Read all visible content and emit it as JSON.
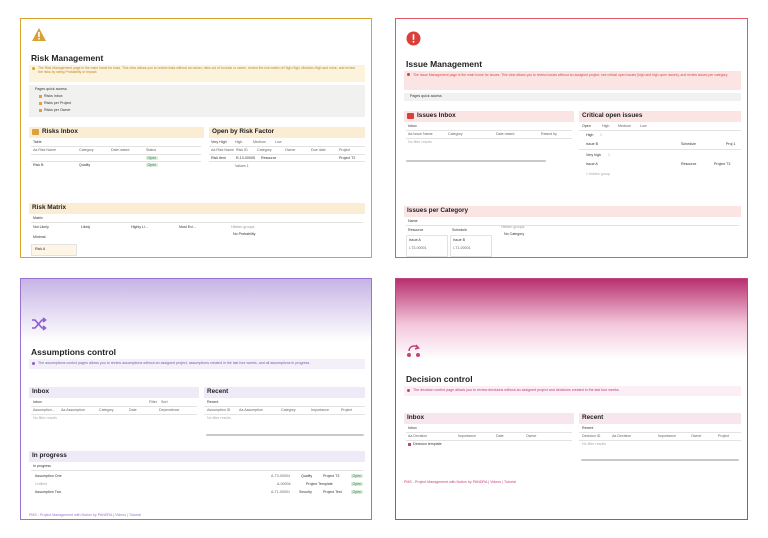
{
  "panels": [
    {
      "title": "Risk Management",
      "description": "The Risk Management page is the main home for risks. This view allows you to review risks without an owner, risks out of bounds or owner, review the risk matrix of High-High, Medium-High and more, and review the risks by rating Probability or Impact.",
      "quick_access": {
        "label": "Pages quick access",
        "items": [
          "Risks Inbox",
          "Risks per Project",
          "Risks per Owner"
        ]
      },
      "inbox": {
        "heading": "Risks Inbox",
        "view": "Table",
        "columns": [
          "Aa Risk Name",
          "Category",
          "Date raised",
          "Status"
        ],
        "rows": [
          [
            "Open"
          ],
          [
            "Risk B",
            "Quality",
            "Open"
          ]
        ]
      },
      "by_factor": {
        "heading": "Open by Risk Factor",
        "tabs": [
          "Very High",
          "High",
          "Medium",
          "Low"
        ],
        "columns": [
          "Aa Risk Name",
          "Risk ID",
          "Category",
          "Owner",
          "Due date",
          "Project"
        ],
        "row": [
          "Risk Item",
          "R-13-00005",
          "Resource",
          "Project T2"
        ],
        "footer": "Values 1"
      },
      "matrix": {
        "heading": "Risk Matrix",
        "view": "Matrix",
        "columns": [
          "Not Likely",
          "Likely",
          "Highly Li...",
          "Most Exi..."
        ],
        "hidden": "Hidden groups",
        "hidden_item": "No Probability",
        "group": "Minimal",
        "card": "Risk A"
      }
    },
    {
      "title": "Issue Management",
      "description": "The Issue Management page is the main home for issues. This view allows you to review issues without an assigned project, see critical open issues (high and high open issues), and review issues per category.",
      "quick_access": {
        "label": "Pages quick access"
      },
      "inbox": {
        "heading": "Issues Inbox",
        "view": "Inbox",
        "columns": [
          "Aa Issue Name",
          "Category",
          "Date raised",
          "Raised by"
        ],
        "empty": "No filter results"
      },
      "critical": {
        "heading": "Critical open issues",
        "tabs": [
          "Open",
          "High",
          "Medium",
          "Low"
        ],
        "groups": [
          {
            "name": "High",
            "count": 1,
            "item": [
              "Issue B",
              "Schedule",
              "Proj 1"
            ]
          },
          {
            "name": "Very high",
            "count": 1,
            "item": [
              "Issue A",
              "Resource",
              "Project T3"
            ]
          }
        ],
        "hidden": "1 hidden group"
      },
      "per_category": {
        "heading": "Issues per Category",
        "view": "Name",
        "groups": [
          {
            "name": "Resource",
            "card": [
              "Issue A",
              "I-T3-00001"
            ]
          },
          {
            "name": "Schedule",
            "card": [
              "Issue B",
              "I-T1-00001"
            ]
          }
        ],
        "hidden": "Hidden groups",
        "hidden_item": "No Category"
      }
    },
    {
      "title": "Assumptions control",
      "description": "The assumptions control pages allows you to review assumptions without an assigned project, assumptions created in the last four weeks, and all assumptions in progress.",
      "inbox": {
        "heading": "Inbox",
        "view": "Inbox",
        "tools": [
          "Filter",
          "Sort"
        ],
        "columns": [
          "Assumption...",
          "Aa Assumption",
          "Category",
          "Date",
          "Dependence"
        ],
        "empty": "No filter results"
      },
      "recent": {
        "heading": "Recent",
        "view": "Recent",
        "columns": [
          "Assumption ID",
          "Aa Assumption",
          "Category",
          "Importance",
          "Project"
        ],
        "empty": "No filter results"
      },
      "progress": {
        "heading": "In progress",
        "view": "In progress",
        "rows": [
          [
            "Assumption One",
            "A-T3-00004",
            "Quality",
            "Project T3",
            "Open"
          ],
          [
            "Untitled",
            "A-00004",
            "Project Template",
            "Open"
          ],
          [
            "Assumption Two",
            "A-T1-00001",
            "Security",
            "Project Test",
            "Open"
          ]
        ]
      },
      "footer": "PMS - Project Management with Notion by PANDRA | Videos | Tutorial"
    },
    {
      "title": "Decision control",
      "description": "The decision control page allows you to review decisions without an assigned project and decisions created in the last four weeks.",
      "inbox": {
        "heading": "Inbox",
        "view": "Inbox",
        "columns": [
          "Aa Decision",
          "Importance",
          "Date",
          "Owner"
        ],
        "row": "Decision template"
      },
      "recent": {
        "heading": "Recent",
        "view": "Recent",
        "columns": [
          "Decision ID",
          "Aa Decision",
          "Importance",
          "Owner",
          "Project"
        ],
        "empty": "No filter results"
      },
      "footer": "PMS - Project Management with Notion by PANDRA | Videos | Tutorial"
    }
  ]
}
